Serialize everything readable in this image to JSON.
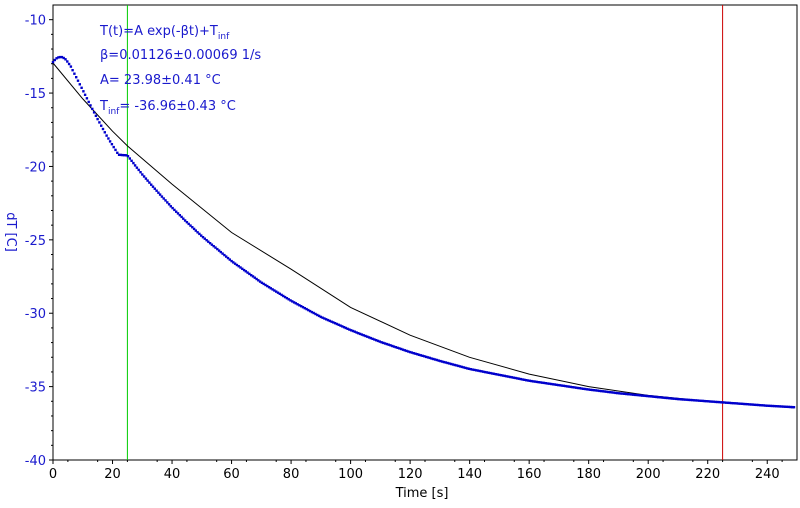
{
  "chart_data": {
    "type": "scatter",
    "title": "",
    "xlabel": "Time [s]",
    "ylabel": "dT [C]",
    "xlim": [
      0,
      250
    ],
    "ylim": [
      -40,
      -9
    ],
    "x_ticks": [
      0,
      20,
      40,
      60,
      80,
      100,
      120,
      140,
      160,
      180,
      200,
      220,
      240
    ],
    "y_ticks": [
      -10,
      -15,
      -20,
      -25,
      -30,
      -35,
      -40
    ],
    "grid": false,
    "fit": {
      "model_line1": "T(t)=A exp(-βt)+T",
      "model_sub": "inf",
      "beta_line": "β=0.01126±0.00069 1/s",
      "A_line": "A= 23.98±0.41 °C",
      "tinf_prefix": "T",
      "tinf_sub": "inf",
      "tinf_rest": "= -36.96±0.43 °C",
      "A": 23.98,
      "beta": 0.01126,
      "T_inf": -36.96
    },
    "fit_range": [
      25,
      225
    ],
    "cursor_lines": [
      {
        "x": 25,
        "color": "#00cc00"
      },
      {
        "x": 225,
        "color": "#cc0000"
      }
    ],
    "series": [
      {
        "color": "#0000cc",
        "x": [
          0,
          1,
          2,
          3,
          4,
          5,
          6,
          7,
          8,
          9,
          10,
          12,
          14,
          16,
          18,
          20,
          22,
          25,
          30,
          35,
          40,
          45,
          50,
          55,
          60,
          70,
          80,
          90,
          100,
          110,
          120,
          130,
          140,
          150,
          160,
          170,
          180,
          190,
          200,
          210,
          220,
          230,
          240,
          249
        ],
        "y": [
          -12.9,
          -12.65,
          -12.55,
          -12.55,
          -12.65,
          -12.9,
          -13.2,
          -13.6,
          -14.0,
          -14.4,
          -14.8,
          -15.6,
          -16.4,
          -17.15,
          -17.9,
          -18.55,
          -19.2,
          -19.25,
          -20.55,
          -21.7,
          -22.8,
          -23.8,
          -24.75,
          -25.6,
          -26.45,
          -27.9,
          -29.15,
          -30.25,
          -31.15,
          -31.95,
          -32.65,
          -33.25,
          -33.8,
          -34.2,
          -34.6,
          -34.9,
          -35.2,
          -35.45,
          -35.65,
          -35.85,
          -36.0,
          -36.15,
          -36.3,
          -36.4
        ]
      }
    ],
    "fit_line": {
      "color": "#000000",
      "x": [
        0,
        10,
        20,
        25,
        40,
        60,
        80,
        100,
        120,
        140,
        160,
        180,
        200,
        220,
        240,
        249
      ],
      "y": [
        -12.95,
        -15.4,
        -17.6,
        -18.6,
        -21.2,
        -24.5,
        -27.0,
        -29.6,
        -31.5,
        -33.0,
        -34.15,
        -35.0,
        -35.6,
        -36.0,
        -36.3,
        -36.45
      ]
    }
  }
}
